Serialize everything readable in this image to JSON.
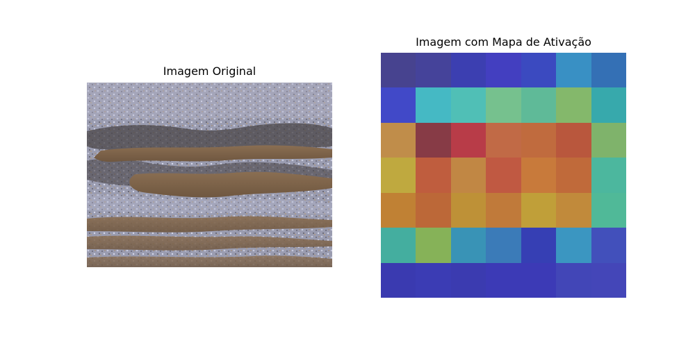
{
  "figure": {
    "left_title": "Imagem Original",
    "right_title": "Imagem com Mapa de Ativação"
  },
  "heatmap": {
    "rows": 7,
    "cols": 7,
    "cells": [
      [
        "#47438f",
        "#45439a",
        "#3c3fb1",
        "#433fc0",
        "#3b4ac0",
        "#3990c4",
        "#3470b5"
      ],
      [
        "#4149c8",
        "#45b9c4",
        "#50bfb6",
        "#76c18e",
        "#5fba98",
        "#84b86b",
        "#37a9ac"
      ],
      [
        "#c08d4a",
        "#873b46",
        "#b83c48",
        "#c16a46",
        "#c06b3e",
        "#b9573d",
        "#7fb36b"
      ],
      [
        "#bfa93f",
        "#bf5d3e",
        "#c18744",
        "#c05942",
        "#c87a3b",
        "#c06a3a",
        "#4cb79e"
      ],
      [
        "#c08134",
        "#bc6838",
        "#be9137",
        "#c07a3a",
        "#c09f39",
        "#c18a3b",
        "#50b998"
      ],
      [
        "#44ae9f",
        "#86b258",
        "#3993b6",
        "#3b7bb8",
        "#363fb4",
        "#3b96c1",
        "#4250bb"
      ],
      [
        "#3a3ab0",
        "#3b3cb4",
        "#3b3bb0",
        "#3c3ab6",
        "#3c3ab6",
        "#4246b7",
        "#4446b8"
      ]
    ]
  }
}
